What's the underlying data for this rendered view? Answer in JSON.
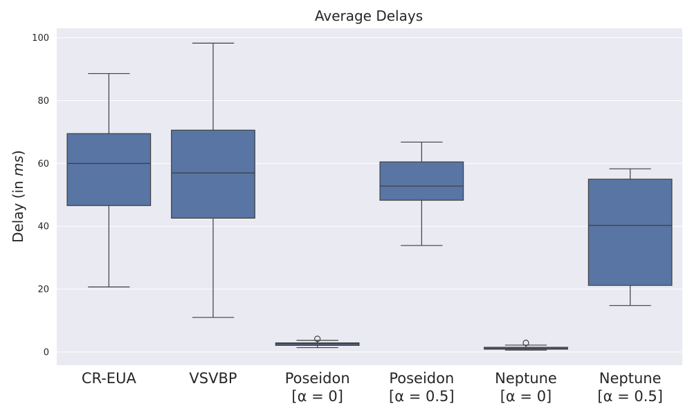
{
  "chart_data": {
    "type": "box",
    "title": "Average Delays",
    "xlabel": "",
    "ylabel_prefix": "Delay (in ",
    "ylabel_unit": "ms",
    "ylabel_suffix": ")",
    "ylim": [
      -4.2,
      103
    ],
    "yticks": [
      0,
      20,
      40,
      60,
      80,
      100
    ],
    "grid": true,
    "background": "#eaeaf2",
    "box_color": "#5875a4",
    "line_color": "#3d3d3d",
    "categories": [
      {
        "line1": "CR-EUA",
        "line2": ""
      },
      {
        "line1": "VSVBP",
        "line2": ""
      },
      {
        "line1": "Poseidon",
        "line2": "[α = 0]"
      },
      {
        "line1": "Poseidon",
        "line2": "[α = 0.5]"
      },
      {
        "line1": "Neptune",
        "line2": "[α = 0]"
      },
      {
        "line1": "Neptune",
        "line2": "[α = 0.5]"
      }
    ],
    "boxes": [
      {
        "whislo": 20.7,
        "q1": 46.6,
        "med": 60.0,
        "q3": 69.5,
        "whishi": 88.6,
        "fliers": []
      },
      {
        "whislo": 11.0,
        "q1": 42.6,
        "med": 57.0,
        "q3": 70.6,
        "whishi": 98.3,
        "fliers": []
      },
      {
        "whislo": 1.4,
        "q1": 2.1,
        "med": 2.6,
        "q3": 2.9,
        "whishi": 3.7,
        "fliers": [
          4.2
        ]
      },
      {
        "whislo": 33.9,
        "q1": 48.3,
        "med": 52.8,
        "q3": 60.5,
        "whishi": 66.8,
        "fliers": []
      },
      {
        "whislo": 0.6,
        "q1": 0.9,
        "med": 1.1,
        "q3": 1.5,
        "whishi": 2.2,
        "fliers": [
          2.9
        ]
      },
      {
        "whislo": 14.8,
        "q1": 21.2,
        "med": 40.3,
        "q3": 55.0,
        "whishi": 58.3,
        "fliers": []
      }
    ]
  }
}
